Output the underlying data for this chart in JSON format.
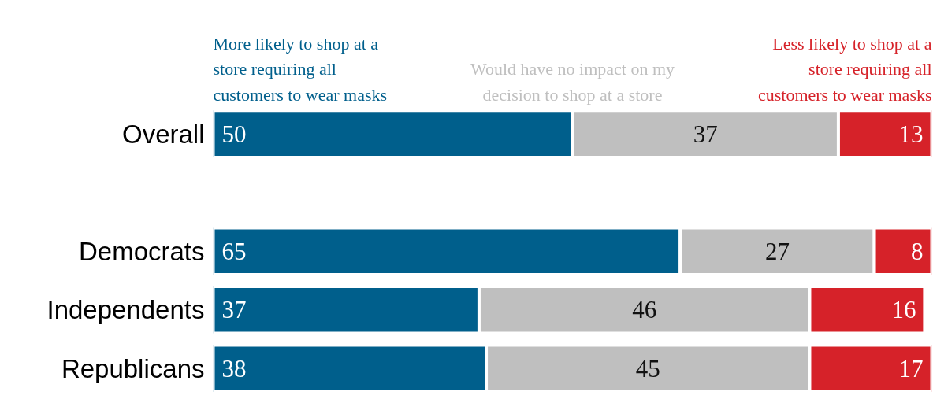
{
  "chart_data": {
    "type": "bar",
    "orientation": "horizontal",
    "stacked": true,
    "categories": [
      "Overall",
      null,
      "Democrats",
      "Independents",
      "Republicans"
    ],
    "series": [
      {
        "name": "More likely to shop at a store requiring all customers to wear masks",
        "color": "#005f8c",
        "values": [
          50,
          null,
          65,
          37,
          38
        ]
      },
      {
        "name": "Would have no impact on my decision to shop at a store",
        "color": "#bfbfbf",
        "values": [
          37,
          null,
          27,
          46,
          45
        ]
      },
      {
        "name": "Less likely to shop at a store requiring all customers to wear masks",
        "color": "#d62229",
        "values": [
          13,
          null,
          8,
          16,
          17
        ]
      }
    ],
    "xlim": [
      0,
      100
    ],
    "data_labels": true,
    "legend": "top",
    "tick_labels": "y",
    "grid": false
  }
}
